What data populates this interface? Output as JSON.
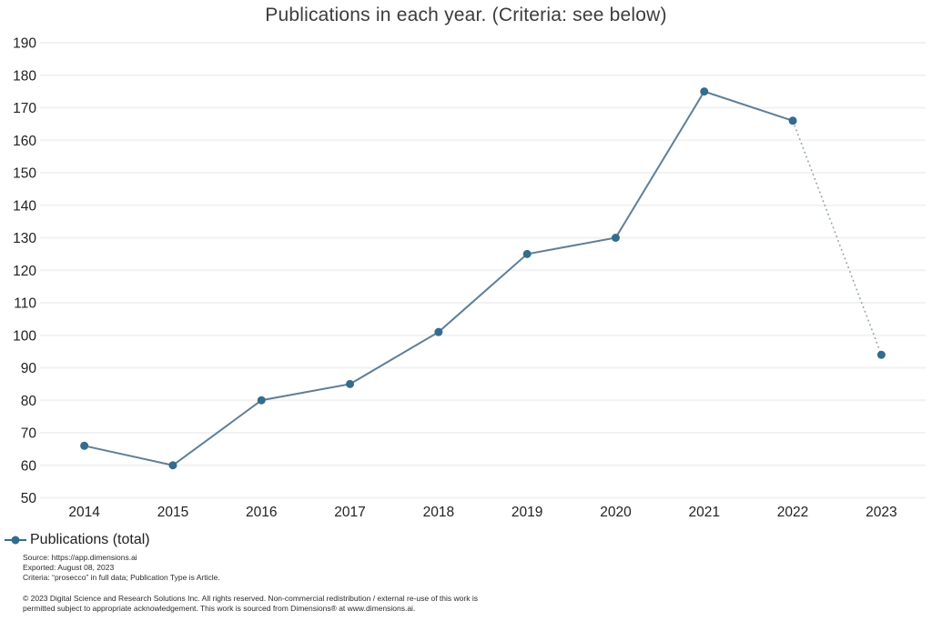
{
  "title": "Publications in each year. (Criteria: see below)",
  "colors": {
    "marker": "#336c8d",
    "line": "#5f7f97",
    "dotted_line": "#8fa1ac",
    "gridline": "#f2f2f2",
    "title_text": "#3c3c3c",
    "axis_text": "#202124"
  },
  "chart_data": {
    "type": "line",
    "categories": [
      "2014",
      "2015",
      "2016",
      "2017",
      "2018",
      "2019",
      "2020",
      "2021",
      "2022",
      "2023"
    ],
    "series": [
      {
        "name": "Publications (total)",
        "values": [
          66,
          60,
          80,
          85,
          101,
          125,
          130,
          175,
          166,
          94
        ]
      }
    ],
    "title": "Publications in each year. (Criteria: see below)",
    "xlabel": "",
    "ylabel": "",
    "ylim": [
      50,
      190
    ],
    "ytick_step": 10,
    "grid": true,
    "legend_position": "bottom-left",
    "last_segment_style": "dotted"
  },
  "legend": {
    "label": "Publications (total)"
  },
  "footer": {
    "source": "Source: https://app.dimensions.ai",
    "exported": "Exported: August 08, 2023",
    "criteria": "Criteria: “prosecco” in full data; Publication Type is Article.",
    "copyright": "© 2023 Digital Science and Research Solutions Inc. All rights reserved. Non-commercial redistribution / external re-use of this work is permitted subject to appropriate acknowledgement. This work is sourced from Dimensions® at www.dimensions.ai."
  }
}
